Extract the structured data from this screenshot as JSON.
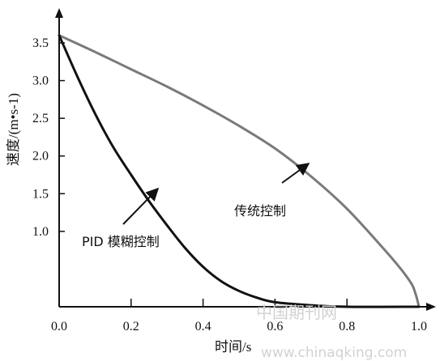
{
  "chart_data": {
    "type": "line",
    "xlabel": "时间/s",
    "ylabel": "速度/(m•s-1)",
    "xlim": [
      0.0,
      1.0
    ],
    "ylim": [
      0.0,
      3.5
    ],
    "x_ticks": [
      "0.0",
      "0.2",
      "0.4",
      "0.6",
      "0.8",
      "1.0"
    ],
    "y_ticks": [
      "1.0",
      "1.5",
      "2.0",
      "2.5",
      "3.0",
      "3.5"
    ],
    "series": [
      {
        "name": "传统控制",
        "color": "#7a7a7a",
        "x": [
          0.0,
          0.1,
          0.2,
          0.3,
          0.4,
          0.5,
          0.6,
          0.7,
          0.8,
          0.9,
          0.95,
          0.98,
          0.99,
          0.995,
          1.0
        ],
        "y": [
          3.6,
          3.38,
          3.15,
          2.92,
          2.67,
          2.4,
          2.1,
          1.73,
          1.3,
          0.78,
          0.5,
          0.3,
          0.18,
          0.1,
          0.0
        ]
      },
      {
        "name": "PID 模糊控制",
        "color": "#111111",
        "x": [
          0.0,
          0.05,
          0.1,
          0.15,
          0.2,
          0.25,
          0.3,
          0.35,
          0.4,
          0.45,
          0.5,
          0.55,
          0.6,
          0.7,
          0.8,
          1.0
        ],
        "y": [
          3.6,
          3.06,
          2.56,
          2.12,
          1.75,
          1.4,
          1.08,
          0.78,
          0.53,
          0.34,
          0.21,
          0.12,
          0.06,
          0.02,
          0.0,
          0.0
        ]
      }
    ],
    "annotations": [
      {
        "text": "传统控制",
        "series": 0
      },
      {
        "text": "PID 模糊控制",
        "series": 1
      }
    ]
  },
  "watermark": {
    "line1": "中国期刊网",
    "line2": "www.chinaqking.com"
  }
}
